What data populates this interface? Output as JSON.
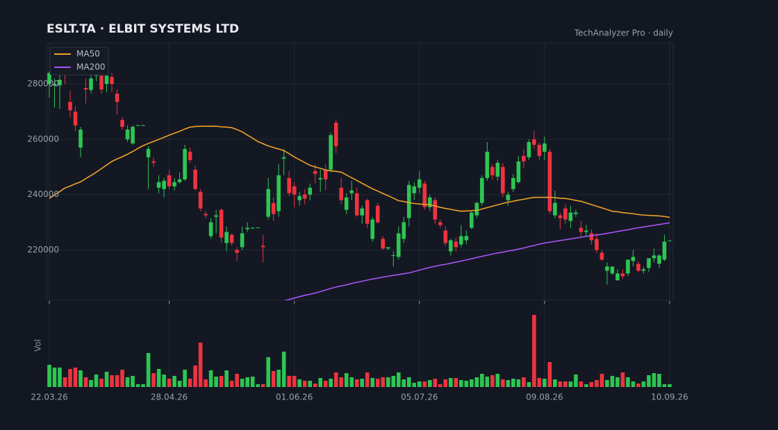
{
  "chart_data": {
    "type": "candlestick",
    "title": "ESLT.TA  ·  ELBIT SYSTEMS LTD",
    "subtitle": "TechAnalyzer Pro · daily",
    "volume_label": "Vol",
    "categories": [
      "22.03.26",
      null,
      null,
      null,
      null,
      null,
      null,
      null,
      null,
      null,
      null,
      null,
      null,
      null,
      null,
      null,
      null,
      null,
      null,
      null,
      null,
      null,
      null,
      "28.04.26",
      null,
      null,
      null,
      null,
      null,
      null,
      null,
      null,
      null,
      null,
      null,
      null,
      null,
      null,
      null,
      null,
      null,
      null,
      null,
      null,
      null,
      null,
      null,
      "01.06.26",
      null,
      null,
      null,
      null,
      null,
      null,
      null,
      null,
      null,
      null,
      null,
      null,
      null,
      null,
      null,
      null,
      null,
      null,
      null,
      null,
      null,
      null,
      null,
      "05.07.26",
      null,
      null,
      null,
      null,
      null,
      null,
      null,
      null,
      null,
      null,
      null,
      null,
      null,
      null,
      null,
      null,
      null,
      null,
      null,
      null,
      null,
      null,
      null,
      "09.08.26",
      null,
      null,
      null,
      null,
      null,
      null,
      null,
      null,
      null,
      null,
      null,
      null,
      null,
      null,
      null,
      null,
      null,
      null,
      null,
      null,
      null,
      null,
      null,
      "10.09.26"
    ],
    "open": [
      280000,
      279500,
      279500,
      285000,
      273500,
      270000,
      257000,
      278500,
      277800,
      283000,
      283000,
      280000,
      282500,
      276500,
      267000,
      260000,
      258500,
      264900,
      265000,
      253500,
      252000,
      242500,
      242000,
      247000,
      243000,
      244500,
      245500,
      255500,
      249000,
      241000,
      233000,
      225000,
      232000,
      234500,
      222500,
      225500,
      220000,
      221000,
      227500,
      227800,
      228000,
      221500,
      232000,
      237000,
      234000,
      253000,
      246000,
      243000,
      238000,
      240000,
      240000,
      248500,
      245500,
      249000,
      249000,
      266000,
      242500,
      234500,
      240500,
      240500,
      232500,
      238000,
      224000,
      236000,
      224000,
      220500,
      218000,
      217500,
      224000,
      231500,
      240500,
      242500,
      244000,
      235500,
      238000,
      230000,
      227000,
      219500,
      223000,
      222000,
      223500,
      228000,
      232500,
      237000,
      246000,
      250000,
      246500,
      250000,
      238000,
      242000,
      244500,
      254000,
      253500,
      260000,
      258000,
      255500,
      255500,
      232500,
      232500,
      235000,
      230500,
      233000,
      228000,
      226500,
      226000,
      224000,
      219000,
      212500,
      211500,
      209000,
      211500,
      211500,
      216000,
      215000,
      212500,
      213500,
      217000,
      215000,
      216500,
      223200
    ],
    "high": [
      284500,
      282000,
      284000,
      286000,
      277500,
      272000,
      264500,
      282000,
      289000,
      289000,
      287000,
      285000,
      284000,
      278000,
      268000,
      265000,
      265000,
      265200,
      265200,
      257500,
      253500,
      247000,
      246000,
      249000,
      246000,
      248000,
      258000,
      257000,
      250500,
      242000,
      234000,
      231500,
      234500,
      235000,
      228500,
      226000,
      221000,
      228500,
      230000,
      228200,
      228200,
      225500,
      246000,
      239000,
      251000,
      256500,
      248500,
      244500,
      241000,
      242000,
      244000,
      251000,
      249000,
      251000,
      262500,
      267000,
      246000,
      240500,
      245000,
      242500,
      236000,
      238500,
      232000,
      237000,
      225000,
      221000,
      219500,
      228500,
      232000,
      245000,
      244500,
      248500,
      245000,
      240000,
      239000,
      231000,
      228500,
      224000,
      224500,
      229000,
      227000,
      234000,
      237500,
      247000,
      259000,
      251000,
      252500,
      251500,
      241000,
      247500,
      254000,
      256500,
      260000,
      263000,
      259000,
      261000,
      256500,
      241500,
      233500,
      236500,
      236000,
      234500,
      230500,
      229000,
      227500,
      226000,
      220000,
      215500,
      214000,
      213000,
      213000,
      216500,
      220000,
      216000,
      214000,
      217000,
      220500,
      218500,
      225500,
      223500
    ],
    "low": [
      275000,
      271500,
      271000,
      280000,
      268000,
      263000,
      253500,
      273000,
      276500,
      281000,
      276500,
      277000,
      277000,
      269000,
      263500,
      259000,
      258000,
      264800,
      264800,
      242000,
      250000,
      240500,
      239000,
      242000,
      241500,
      244000,
      245000,
      251500,
      241500,
      234000,
      231500,
      224000,
      226000,
      222500,
      219500,
      221500,
      216000,
      220000,
      226500,
      227600,
      227900,
      215500,
      231000,
      230500,
      232000,
      247000,
      239500,
      235500,
      236000,
      236500,
      238000,
      244000,
      241000,
      241500,
      248000,
      255000,
      236500,
      233000,
      238000,
      232000,
      229500,
      228000,
      223000,
      229500,
      220000,
      220000,
      214000,
      216500,
      222500,
      228500,
      238000,
      240500,
      234500,
      234000,
      229500,
      228000,
      221500,
      218000,
      219500,
      221000,
      222000,
      227500,
      231500,
      236000,
      245000,
      245500,
      245000,
      239000,
      236000,
      241000,
      244000,
      249500,
      252500,
      256500,
      252500,
      252500,
      233000,
      231500,
      227500,
      229500,
      228000,
      232000,
      225000,
      225000,
      222000,
      219000,
      216000,
      207500,
      211000,
      209000,
      209500,
      210500,
      214000,
      212000,
      211500,
      212000,
      215500,
      213500,
      216000,
      223100
    ],
    "close": [
      284000,
      280000,
      281500,
      283500,
      270500,
      265000,
      263500,
      278000,
      282000,
      286000,
      278000,
      283000,
      280000,
      273500,
      264500,
      263500,
      264500,
      265100,
      265100,
      256500,
      251500,
      244500,
      245000,
      243000,
      244500,
      245500,
      256500,
      252500,
      242000,
      235000,
      232500,
      230000,
      232500,
      224500,
      226500,
      222500,
      219000,
      226000,
      228000,
      228000,
      228100,
      221000,
      242000,
      233000,
      247000,
      253500,
      240500,
      240000,
      239500,
      238500,
      242500,
      247500,
      246000,
      245500,
      261500,
      257500,
      238000,
      239000,
      241500,
      232500,
      235000,
      229500,
      231000,
      230000,
      220500,
      221000,
      218100,
      226000,
      230000,
      243500,
      243000,
      245500,
      235500,
      239000,
      231000,
      229000,
      222500,
      223500,
      221000,
      225000,
      225000,
      233500,
      237000,
      246000,
      255500,
      247000,
      251500,
      240500,
      240000,
      246000,
      252000,
      252000,
      259000,
      258000,
      254000,
      258500,
      234000,
      237000,
      231500,
      231000,
      233500,
      233500,
      226500,
      227000,
      223500,
      220000,
      216500,
      214000,
      214000,
      211500,
      210500,
      216500,
      217500,
      212500,
      213000,
      217000,
      218000,
      218000,
      223000,
      223400
    ],
    "volume": [
      32,
      28,
      28,
      14,
      26,
      28,
      24,
      14,
      10,
      18,
      12,
      22,
      17,
      17,
      25,
      14,
      16,
      4,
      4,
      49,
      20,
      26,
      18,
      12,
      16,
      9,
      25,
      12,
      31,
      64,
      11,
      24,
      15,
      16,
      24,
      9,
      19,
      12,
      14,
      15,
      4,
      4,
      43,
      23,
      25,
      51,
      16,
      16,
      11,
      9,
      9,
      5,
      13,
      9,
      12,
      21,
      14,
      20,
      14,
      11,
      12,
      21,
      13,
      12,
      14,
      14,
      16,
      21,
      11,
      14,
      6,
      8,
      8,
      10,
      12,
      4,
      11,
      13,
      13,
      10,
      9,
      11,
      14,
      19,
      15,
      17,
      19,
      11,
      10,
      12,
      11,
      14,
      7,
      104,
      13,
      12,
      36,
      11,
      8,
      8,
      8,
      18,
      8,
      4,
      7,
      10,
      19,
      10,
      16,
      14,
      21,
      14,
      8,
      5,
      8,
      17,
      20,
      19,
      4,
      4
    ],
    "series": [
      {
        "name": "MA50",
        "color": "#f0a327",
        "values": [
          238600,
          239900,
          241100,
          242400,
          243100,
          243900,
          244600,
          245800,
          246900,
          248100,
          249400,
          250700,
          252000,
          252900,
          253700,
          254600,
          255600,
          256700,
          257700,
          258500,
          259200,
          260000,
          260700,
          261500,
          262200,
          262900,
          263700,
          264400,
          264600,
          264700,
          264700,
          264700,
          264700,
          264500,
          264400,
          264200,
          263500,
          262700,
          261500,
          260400,
          259200,
          258400,
          257600,
          257000,
          256500,
          255900,
          254800,
          253600,
          252600,
          251600,
          250600,
          250000,
          249500,
          248900,
          248600,
          248400,
          248100,
          247100,
          246100,
          245100,
          244100,
          243100,
          242100,
          241300,
          240400,
          239600,
          238700,
          237800,
          237500,
          237100,
          236800,
          236600,
          236500,
          236300,
          235900,
          235400,
          235000,
          234700,
          234300,
          234000,
          234100,
          234200,
          234300,
          234800,
          235300,
          235800,
          236300,
          236800,
          237300,
          237600,
          238000,
          238300,
          238700,
          239000,
          239000,
          239000,
          239000,
          238900,
          238700,
          238600,
          238300,
          237900,
          237600,
          237000,
          236400,
          235800,
          235200,
          234600,
          234000,
          233800,
          233500,
          233300,
          233100,
          232800,
          232600,
          232500,
          232400,
          232300,
          232100,
          231800
        ]
      },
      {
        "name": "MA200",
        "color": "#a656f5",
        "values": [
          null,
          null,
          null,
          null,
          null,
          null,
          null,
          null,
          null,
          null,
          null,
          null,
          null,
          null,
          null,
          null,
          null,
          null,
          null,
          null,
          null,
          null,
          null,
          null,
          null,
          null,
          null,
          null,
          null,
          null,
          null,
          null,
          null,
          null,
          null,
          null,
          null,
          null,
          null,
          null,
          null,
          null,
          null,
          null,
          null,
          201600,
          202100,
          202600,
          203100,
          203600,
          204000,
          204400,
          205000,
          205500,
          206100,
          206600,
          207000,
          207400,
          207900,
          208300,
          208700,
          209100,
          209500,
          209800,
          210200,
          210500,
          210800,
          211100,
          211400,
          211700,
          212200,
          212700,
          213200,
          213700,
          214100,
          214500,
          214800,
          215200,
          215600,
          216000,
          216400,
          216800,
          217300,
          217700,
          218100,
          218500,
          218900,
          219200,
          219600,
          219900,
          220300,
          220700,
          221200,
          221600,
          222100,
          222500,
          222800,
          223100,
          223400,
          223700,
          224000,
          224300,
          224600,
          224900,
          225200,
          225400,
          225700,
          226000,
          226300,
          226700,
          227000,
          227300,
          227700,
          228000,
          228300,
          228600,
          228900,
          229200,
          229500,
          229800
        ]
      }
    ],
    "up_color": "#2dc653",
    "down_color": "#ef3340",
    "ylim": [
      201800,
      294800
    ],
    "yticks": [
      220000,
      240000,
      260000,
      280000
    ],
    "grid": true,
    "legend": "upper left"
  }
}
